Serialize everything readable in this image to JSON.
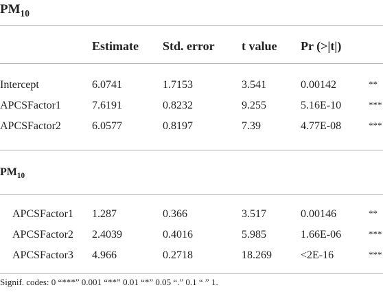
{
  "title": {
    "main": "PM",
    "sub": "10"
  },
  "header": [
    "Estimate",
    "Std. error",
    "t value",
    "Pr (>|t|)"
  ],
  "sections": [
    {
      "rows": [
        [
          "Intercept",
          "6.0741",
          "1.7153",
          "3.541",
          "0.00142",
          "**"
        ],
        [
          "APCSFactor1",
          "7.6191",
          "0.8232",
          "9.255",
          "5.16E-10",
          "***"
        ],
        [
          "APCSFactor2",
          "6.0577",
          "0.8197",
          "7.39",
          "4.77E-08",
          "***"
        ]
      ]
    },
    {
      "title": {
        "main": "PM",
        "sub": "10"
      },
      "rows": [
        [
          "APCSFactor1",
          "1.287",
          "0.366",
          "3.517",
          "0.00146",
          "**"
        ],
        [
          "APCSFactor2",
          "2.4039",
          "0.4016",
          "5.985",
          "1.66E-06",
          "***"
        ],
        [
          "APCSFactor3",
          "4.966",
          "0.2718",
          "18.269",
          "<2E-16",
          "***"
        ]
      ]
    }
  ],
  "footnote": "Signif. codes: 0 “***” 0.001 “**” 0.01 “*” 0.05 “.” 0.1 “ ” 1."
}
